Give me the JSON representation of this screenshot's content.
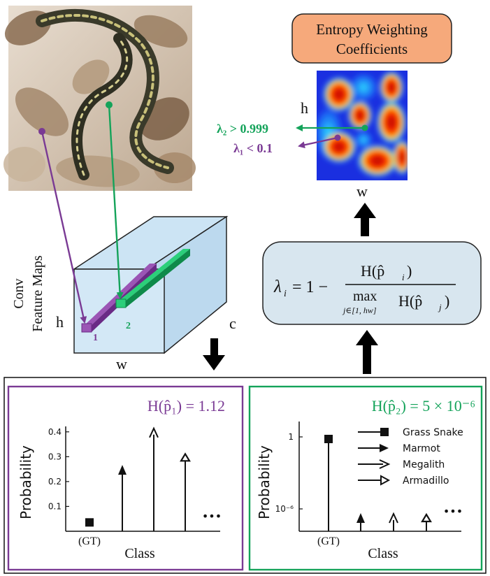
{
  "top": {
    "entropy_box_line1": "Entropy Weighting",
    "entropy_box_line2": "Coefficients",
    "heatmap_h_label": "h",
    "heatmap_w_label": "w",
    "lambda2_text": "λ₂ > 0.999",
    "lambda1_text": "λ₁ < 0.1"
  },
  "feature_maps": {
    "rotated_label_line1": "Conv",
    "rotated_label_line2": "Feature Maps",
    "h_label": "h",
    "w_label": "w",
    "c_label": "c",
    "marker1": "1",
    "marker2": "2"
  },
  "formula": {
    "lhs": "λ",
    "lhs_sub": "i",
    "eq": "= 1 −",
    "numerator": "H(p̂",
    "numerator_sub": "i",
    "numerator_close": ")",
    "denominator_max": "max",
    "denominator_sub": "j∈[1, hw]",
    "denominator_h": "H(p̂",
    "denominator_h_sub": "j",
    "denominator_close": ")"
  },
  "colors": {
    "purple": "#7a3a94",
    "green": "#14a35a",
    "formula_fill": "#d8e6ef",
    "entropy_fill": "#f6a97b",
    "cube_fill": "#cce4f4"
  },
  "chart_data": [
    {
      "type": "bar",
      "title": "H(p̂₁) = 1.12",
      "xlabel": "Class",
      "ylabel": "Probability",
      "yticks": [
        "0.1",
        "0.2",
        "0.3",
        "0.4"
      ],
      "ylim": [
        0,
        0.45
      ],
      "categories": [
        "Grass Snake",
        "Marmot",
        "Megalith",
        "Armadillo"
      ],
      "values": [
        0.03,
        0.25,
        0.4,
        0.3
      ],
      "gt_label": "(GT)",
      "ellipsis": "•••"
    },
    {
      "type": "bar",
      "title": "H(p̂₂) = 5 × 10⁻⁶",
      "xlabel": "Class",
      "ylabel": "Probability",
      "yscale": "log",
      "yticks": [
        "1",
        "10⁻⁶"
      ],
      "categories": [
        "Grass Snake",
        "Marmot",
        "Megalith",
        "Armadillo"
      ],
      "values": [
        1,
        1e-06,
        1e-06,
        1e-06
      ],
      "gt_label": "(GT)",
      "ellipsis": "•••",
      "legend": [
        "Grass Snake",
        "Marmot",
        "Megalith",
        "Armadillo"
      ],
      "legend_position": "top-right"
    }
  ]
}
